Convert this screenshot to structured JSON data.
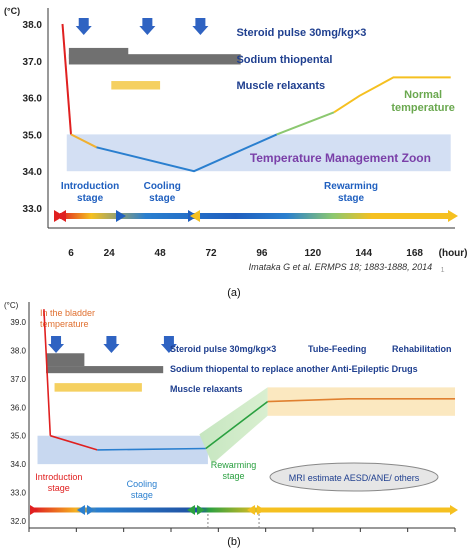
{
  "chart_data": [
    {
      "id": "a",
      "type": "line",
      "panel_label": "(a)",
      "ylabel": "(°C)",
      "xlabel": "(hour)",
      "x_ticks": [
        6,
        24,
        48,
        72,
        96,
        120,
        144,
        168
      ],
      "y_ticks": [
        "38.0",
        "37.0",
        "36.0",
        "35.0",
        "34.0",
        "33.0"
      ],
      "ylim": [
        32.6,
        38.3
      ],
      "series": [
        {
          "color": "#e02020",
          "points": [
            [
              2,
              38.0
            ],
            [
              6,
              35.0
            ]
          ]
        },
        {
          "color": "#f0b030",
          "points": [
            [
              6,
              35.0
            ],
            [
              18,
              34.65
            ]
          ]
        },
        {
          "color": "#2a7fcf",
          "points": [
            [
              18,
              34.65
            ],
            [
              64,
              34.0
            ],
            [
              103,
              35.0
            ]
          ]
        },
        {
          "color": "#8cc870",
          "points": [
            [
              103,
              35.0
            ],
            [
              130,
              35.6
            ]
          ]
        },
        {
          "color": "#f5c020",
          "points": [
            [
              130,
              35.6
            ],
            [
              142,
              36.05
            ],
            [
              158,
              36.55
            ],
            [
              185,
              36.55
            ]
          ]
        }
      ],
      "zone": {
        "label": "Temperature Management Zoon",
        "y_range": [
          34.0,
          35.0
        ],
        "x_range": [
          4,
          185
        ]
      },
      "treatments": [
        {
          "label": "Steroid pulse 30mg/kg×3",
          "arrows_at": [
            12,
            42,
            67
          ]
        },
        {
          "label": "Sodium thiopental",
          "bars": [
            [
              5,
              33,
              37.35,
              37.05
            ],
            [
              5,
              86,
              37.18,
              36.9
            ]
          ],
          "color": "#707070"
        },
        {
          "label": "Muscle relaxants",
          "bars": [
            [
              25,
              48,
              36.45,
              36.22
            ]
          ],
          "color": "#f5d060"
        }
      ],
      "normal_temperature_label": [
        "Normal",
        "temperature"
      ],
      "stages": [
        {
          "label": [
            "Introduction",
            "stage"
          ],
          "color": "#1f5fbf"
        },
        {
          "label": [
            "Cooling",
            "stage"
          ],
          "color": "#1f5fbf"
        },
        {
          "label": [
            "Rewarming",
            "stage"
          ],
          "color": "#1f5fbf"
        }
      ],
      "citation": "Imataka G et al. ERMPS 18; 1883-1888, 2014",
      "small_mark": "1"
    },
    {
      "id": "b",
      "type": "line",
      "panel_label": "(b)",
      "ylabel": "(°C)",
      "y_ticks": [
        "39.0",
        "38.0",
        "37.0",
        "36.0",
        "35.0",
        "34.0",
        "33.0",
        "32.0"
      ],
      "ylim": [
        31.7,
        39.6
      ],
      "series": [
        {
          "color": "#e02020",
          "points": [
            [
              0.035,
              39.45
            ],
            [
              0.04,
              38.0
            ],
            [
              0.05,
              35.0
            ]
          ]
        },
        {
          "color": "#e02020",
          "points": [
            [
              0.05,
              35.0
            ],
            [
              0.16,
              34.5
            ]
          ]
        },
        {
          "color": "#2a7fcf",
          "points": [
            [
              0.16,
              34.5
            ],
            [
              0.415,
              34.55
            ]
          ]
        },
        {
          "color": "#2aa040",
          "points": [
            [
              0.415,
              34.55
            ],
            [
              0.56,
              36.2
            ]
          ]
        },
        {
          "color": "#e08030",
          "points": [
            [
              0.56,
              36.2
            ],
            [
              0.75,
              36.3
            ],
            [
              1.0,
              36.3
            ]
          ]
        }
      ],
      "zones": [
        {
          "color": "#c8d8f0",
          "x_range": [
            0.02,
            0.42
          ],
          "y_range": [
            34.0,
            35.0
          ]
        },
        {
          "color": "#fbe8c0",
          "x_range": [
            0.56,
            1.0
          ],
          "y_range": [
            35.7,
            36.7
          ]
        }
      ],
      "treatments": [
        {
          "label": "Steroid pulse 30mg/kg×3",
          "arrows_at": [
            0.04,
            0.17,
            0.305
          ]
        },
        {
          "label": "Sodium thiopental  to replace another Anti-Epileptic Drugs",
          "color": "#707070"
        },
        {
          "label": "Muscle relaxants",
          "color": "#f5d060"
        }
      ],
      "extra_labels": [
        "Tube-Feeding",
        "Rehabilitation"
      ],
      "bladder_label": [
        "In the bladder",
        "temperature"
      ],
      "stages": [
        {
          "label": [
            "Introduction",
            "stage"
          ],
          "color": "#e02020"
        },
        {
          "label": [
            "Cooling",
            "stage"
          ],
          "color": "#2a7fcf"
        },
        {
          "label": [
            "Rewarming",
            "stage"
          ],
          "color": "#2aa040"
        }
      ],
      "mri_label": "MRI estimate AESD/ANE/ others"
    }
  ]
}
